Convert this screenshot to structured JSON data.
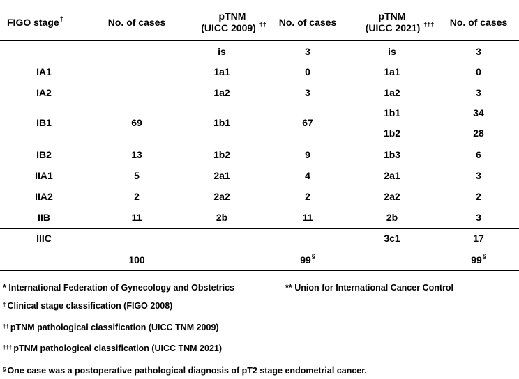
{
  "headers": {
    "figo_stage": "FIGO stage",
    "figo_mark": "†",
    "cases1": "No. of cases",
    "ptnm2009_line1": "pTNM",
    "ptnm2009_line2": "(UICC 2009)",
    "ptnm2009_mark": "††",
    "cases2": "No. of cases",
    "ptnm2021_line1": "pTNM",
    "ptnm2021_line2": "(UICC 2021)",
    "ptnm2021_mark": "†††",
    "cases3": "No. of cases"
  },
  "rows": [
    {
      "figo": "",
      "n1": "",
      "p2009": "is",
      "n2": "3",
      "p2021": "is",
      "n3": "3"
    },
    {
      "figo": "IA1",
      "n1": "",
      "p2009": "1a1",
      "n2": "0",
      "p2021": "1a1",
      "n3": "0"
    },
    {
      "figo": "IA2",
      "n1": "",
      "p2009": "1a2",
      "n2": "3",
      "p2021": "1a2",
      "n3": "3"
    },
    {
      "figo": "IB1",
      "n1": "69",
      "p2009": "1b1",
      "n2": "67",
      "p2021": "1b1",
      "n3": "34",
      "p2021b": "1b2",
      "n3b": "28"
    },
    {
      "figo": "IB2",
      "n1": "13",
      "p2009": "1b2",
      "n2": "9",
      "p2021": "1b3",
      "n3": "6"
    },
    {
      "figo": "IIA1",
      "n1": "5",
      "p2009": "2a1",
      "n2": "4",
      "p2021": "2a1",
      "n3": "3"
    },
    {
      "figo": "IIA2",
      "n1": "2",
      "p2009": "2a2",
      "n2": "2",
      "p2021": "2a2",
      "n3": "2"
    },
    {
      "figo": "IIB",
      "n1": "11",
      "p2009": "2b",
      "n2": "11",
      "p2021": "2b",
      "n3": "3"
    },
    {
      "figo": "IIIC",
      "n1": "",
      "p2009": "",
      "n2": "",
      "p2021": "3c1",
      "n3": "17"
    }
  ],
  "totals": {
    "n1": "100",
    "n2": "99",
    "n2_mark": "§",
    "n3": "99",
    "n3_mark": "§"
  },
  "footnotes": {
    "figo_def": "* International Federation of Gynecology and Obstetrics",
    "uicc_def": "** Union for International Cancer Control",
    "dagger_mark": "†",
    "dagger_text": "Clinical stage classification (FIGO 2008)",
    "ddagger_mark": "††",
    "ddagger_text": "pTNM pathological classification (UICC TNM 2009)",
    "tdagger_mark": "†††",
    "tdagger_text": "pTNM pathological classification (UICC TNM 2021)",
    "section_mark": "§",
    "section_text": "One case was a postoperative pathological diagnosis of pT2 stage endometrial cancer."
  }
}
